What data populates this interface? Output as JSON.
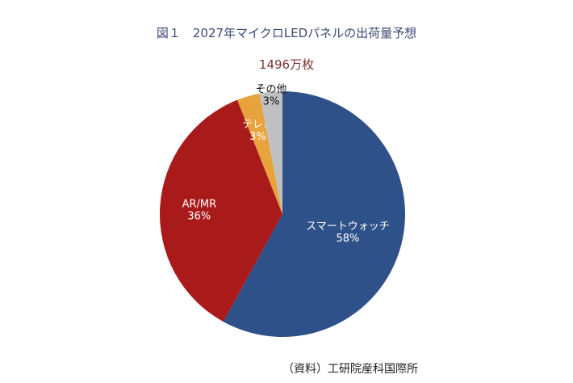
{
  "chart_data": {
    "type": "pie",
    "title": "図１　2027年マイクロLEDパネルの出荷量予想",
    "subtitle": "1496万枚",
    "categories": [
      "スマートウォッチ",
      "AR/MR",
      "テレビ",
      "その他"
    ],
    "values": [
      58,
      36,
      3,
      3
    ],
    "value_labels": [
      "58%",
      "36%",
      "3%",
      "3%"
    ],
    "colors": [
      "#2e5189",
      "#a91b1b",
      "#e8a33d",
      "#c0c0c0"
    ],
    "label_colors": [
      "#ffffff",
      "#ffffff",
      "#ffffff",
      "#111111"
    ],
    "start": "top",
    "direction": "clockwise",
    "source": "（資料）工研院産科国際所"
  }
}
